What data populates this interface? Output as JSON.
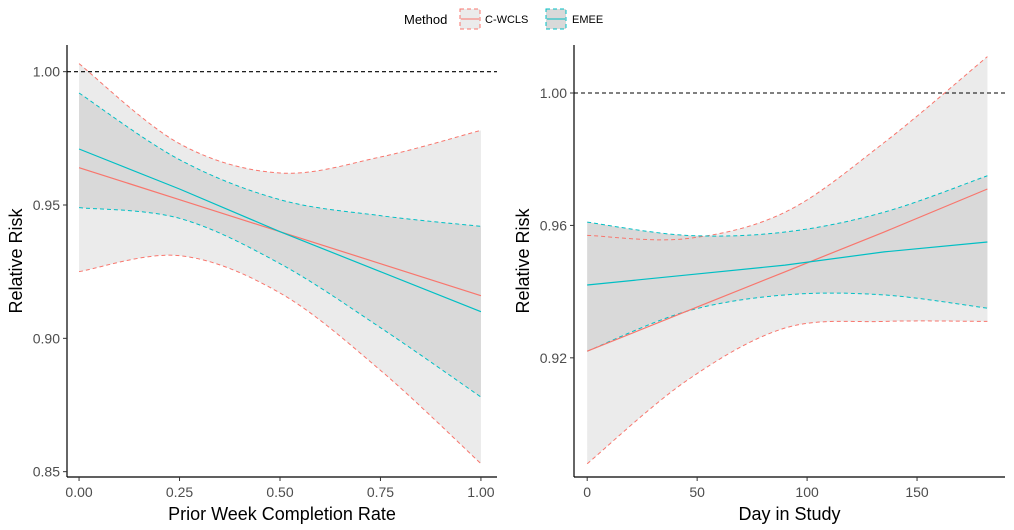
{
  "legend": {
    "title": "Method",
    "items": [
      {
        "label": "C-WCLS",
        "color": "#F8766D"
      },
      {
        "label": "EMEE",
        "color": "#00BFC4"
      }
    ]
  },
  "colors": {
    "outer_band": "#ebebeb",
    "inner_band": "#d9d9d9",
    "reference_line": "#000000"
  },
  "chart_data": [
    {
      "type": "line",
      "xlabel": "Prior Week Completion Rate",
      "ylabel": "Relative Risk",
      "xlim": [
        -0.03,
        1.04
      ],
      "ylim": [
        0.848,
        1.01
      ],
      "xticks": [
        0.0,
        0.25,
        0.5,
        0.75,
        1.0
      ],
      "xtick_labels": [
        "0.00",
        "0.25",
        "0.50",
        "0.75",
        "1.00"
      ],
      "yticks": [
        0.85,
        0.9,
        0.95,
        1.0
      ],
      "ytick_labels": [
        "0.85",
        "0.90",
        "0.95",
        "1.00"
      ],
      "reference_line": 1.0,
      "series": [
        {
          "name": "C-WCLS",
          "color": "#F8766D",
          "x": [
            0.0,
            0.25,
            0.5,
            0.75,
            1.0
          ],
          "estimate": [
            0.964,
            0.952,
            0.94,
            0.928,
            0.916
          ],
          "lower": [
            0.925,
            0.931,
            0.917,
            0.888,
            0.853
          ],
          "upper": [
            1.003,
            0.973,
            0.962,
            0.968,
            0.978
          ]
        },
        {
          "name": "EMEE",
          "color": "#00BFC4",
          "x": [
            0.0,
            0.25,
            0.5,
            0.75,
            1.0
          ],
          "estimate": [
            0.971,
            0.956,
            0.94,
            0.925,
            0.91
          ],
          "lower": [
            0.949,
            0.945,
            0.928,
            0.904,
            0.878
          ],
          "upper": [
            0.992,
            0.967,
            0.952,
            0.946,
            0.942
          ]
        }
      ]
    },
    {
      "type": "line",
      "xlabel": "Day in Study",
      "ylabel": "Relative Risk",
      "xlim": [
        -6,
        190
      ],
      "ylim": [
        0.884,
        1.0145
      ],
      "xticks": [
        0,
        50,
        100,
        150
      ],
      "xtick_labels": [
        "0",
        "50",
        "100",
        "150"
      ],
      "yticks": [
        0.92,
        0.96,
        1.0
      ],
      "ytick_labels": [
        "0.92",
        "0.96",
        "1.00"
      ],
      "reference_line": 1.0,
      "series": [
        {
          "name": "C-WCLS",
          "color": "#F8766D",
          "x": [
            0,
            45,
            90,
            135,
            182
          ],
          "estimate": [
            0.922,
            0.934,
            0.946,
            0.958,
            0.971
          ],
          "lower": [
            0.888,
            0.913,
            0.929,
            0.931,
            0.931
          ],
          "upper": [
            0.957,
            0.956,
            0.964,
            0.985,
            1.011
          ]
        },
        {
          "name": "EMEE",
          "color": "#00BFC4",
          "x": [
            0,
            45,
            90,
            135,
            182
          ],
          "estimate": [
            0.942,
            0.945,
            0.948,
            0.952,
            0.955
          ],
          "lower": [
            0.922,
            0.934,
            0.939,
            0.939,
            0.935
          ],
          "upper": [
            0.961,
            0.957,
            0.958,
            0.964,
            0.975
          ]
        }
      ]
    }
  ]
}
